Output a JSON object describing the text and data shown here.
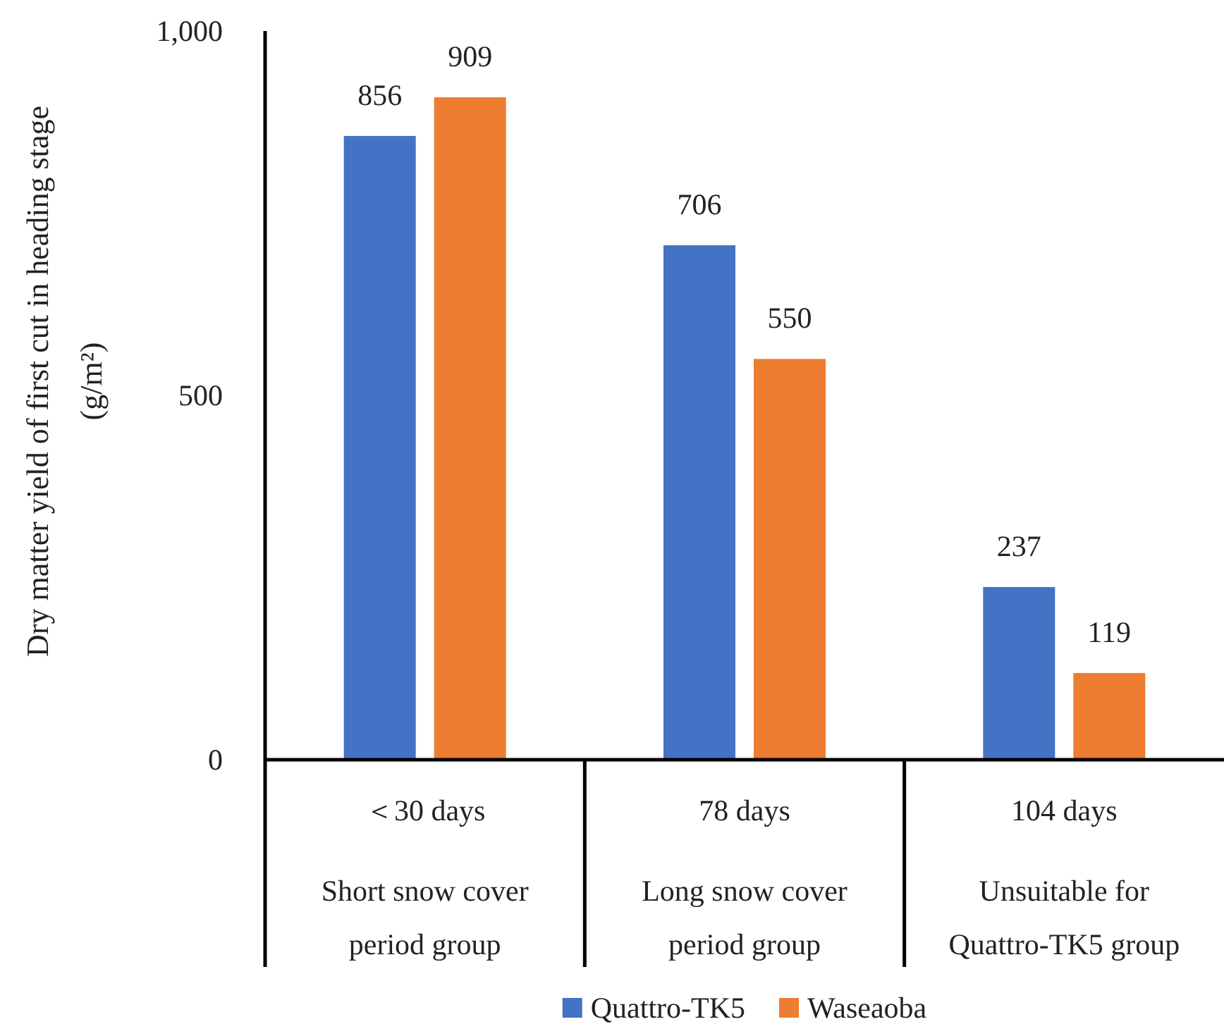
{
  "chart_data": {
    "type": "bar",
    "categories": [
      "＜30 days\n\nShort snow cover\nperiod group",
      "78 days\n\nLong snow cover\nperiod group",
      "104 days\n\nUnsuitable for\nQuattro-TK5 group"
    ],
    "series": [
      {
        "name": "Quattro-TK5",
        "color": "#4472c4",
        "values": [
          856,
          706,
          237
        ]
      },
      {
        "name": "Waseaoba",
        "color": "#ed7d31",
        "values": [
          909,
          550,
          119
        ]
      }
    ],
    "ylabel": "Dry matter yield of first cut in heading stage\n(g/m²)",
    "ylim": [
      0,
      1000
    ],
    "yticks": [
      0,
      500,
      {
        "value": 1000,
        "label": "1,000"
      }
    ],
    "data_labels": true,
    "legend": "bottom",
    "grid": false
  }
}
